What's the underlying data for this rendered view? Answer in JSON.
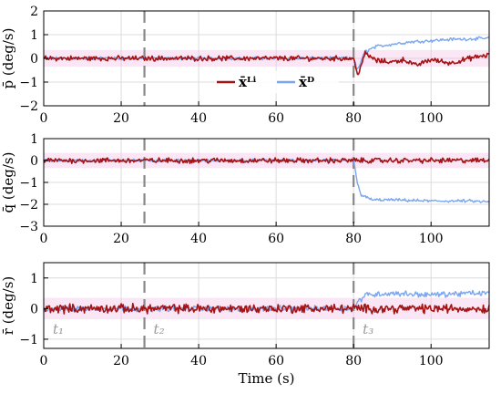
{
  "chart_data": {
    "type": "line",
    "xlabel": "Time (s)",
    "xlim": [
      0,
      115
    ],
    "xticks": [
      0,
      20,
      40,
      60,
      80,
      100
    ],
    "event_lines": [
      {
        "t": 0,
        "label": "t₁"
      },
      {
        "t": 26,
        "label": "t₂"
      },
      {
        "t": 80,
        "label": "t₃"
      }
    ],
    "colors": {
      "Li": "#a51414",
      "D": "#7aa6f0",
      "band": "#f2b8e2",
      "grid": "#dcdcdc",
      "event": "#888888"
    },
    "legend": [
      {
        "key": "D",
        "label": "x̄ᴰ"
      },
      {
        "key": "Li",
        "label": "x̄ᴸⁱ"
      }
    ],
    "legend_location": "inside lower-right of top panel",
    "panels": [
      {
        "ylabel": "p̄ (deg/s)",
        "ylim": [
          -2,
          2
        ],
        "yticks": [
          -2,
          -1,
          0,
          1,
          2
        ],
        "show_event_labels": false,
        "series": [
          {
            "key": "D",
            "segments": [
              [
                0,
                0
              ],
              [
                80,
                0
              ],
              [
                81,
                -0.5
              ],
              [
                83,
                0.3
              ],
              [
                86,
                0.5
              ],
              [
                90,
                0.6
              ],
              [
                95,
                0.7
              ],
              [
                100,
                0.75
              ],
              [
                105,
                0.8
              ],
              [
                110,
                0.82
              ],
              [
                115,
                0.85
              ]
            ]
          },
          {
            "key": "Li",
            "segments": [
              [
                0,
                0
              ],
              [
                80,
                0
              ],
              [
                81,
                -0.7
              ],
              [
                83,
                0.2
              ],
              [
                86,
                -0.1
              ],
              [
                90,
                -0.15
              ],
              [
                93,
                -0.05
              ],
              [
                96,
                -0.3
              ],
              [
                100,
                -0.05
              ],
              [
                105,
                -0.2
              ],
              [
                110,
                0.0
              ],
              [
                115,
                0.15
              ]
            ]
          }
        ]
      },
      {
        "ylabel": "q̄ (deg/s)",
        "ylim": [
          -3,
          1
        ],
        "yticks": [
          -3,
          -2,
          -1,
          0,
          1
        ],
        "show_event_labels": false,
        "series": [
          {
            "key": "D",
            "segments": [
              [
                0,
                0
              ],
              [
                80,
                0
              ],
              [
                81,
                -1.0
              ],
              [
                82,
                -1.6
              ],
              [
                85,
                -1.8
              ],
              [
                90,
                -1.8
              ],
              [
                100,
                -1.85
              ],
              [
                110,
                -1.85
              ],
              [
                115,
                -1.9
              ]
            ]
          },
          {
            "key": "Li",
            "segments": [
              [
                0,
                0
              ],
              [
                115,
                0
              ]
            ]
          }
        ]
      },
      {
        "ylabel": "r̄ (deg/s)",
        "ylim": [
          -1.3,
          1.5
        ],
        "yticks": [
          -1,
          0,
          1
        ],
        "show_event_labels": true,
        "series": [
          {
            "key": "D",
            "segments": [
              [
                0,
                0
              ],
              [
                80,
                0
              ],
              [
                81,
                0.2
              ],
              [
                83,
                0.45
              ],
              [
                90,
                0.5
              ],
              [
                100,
                0.45
              ],
              [
                110,
                0.5
              ],
              [
                115,
                0.5
              ]
            ]
          },
          {
            "key": "Li",
            "segments": [
              [
                0,
                0
              ],
              [
                115,
                0
              ]
            ]
          }
        ]
      }
    ]
  }
}
